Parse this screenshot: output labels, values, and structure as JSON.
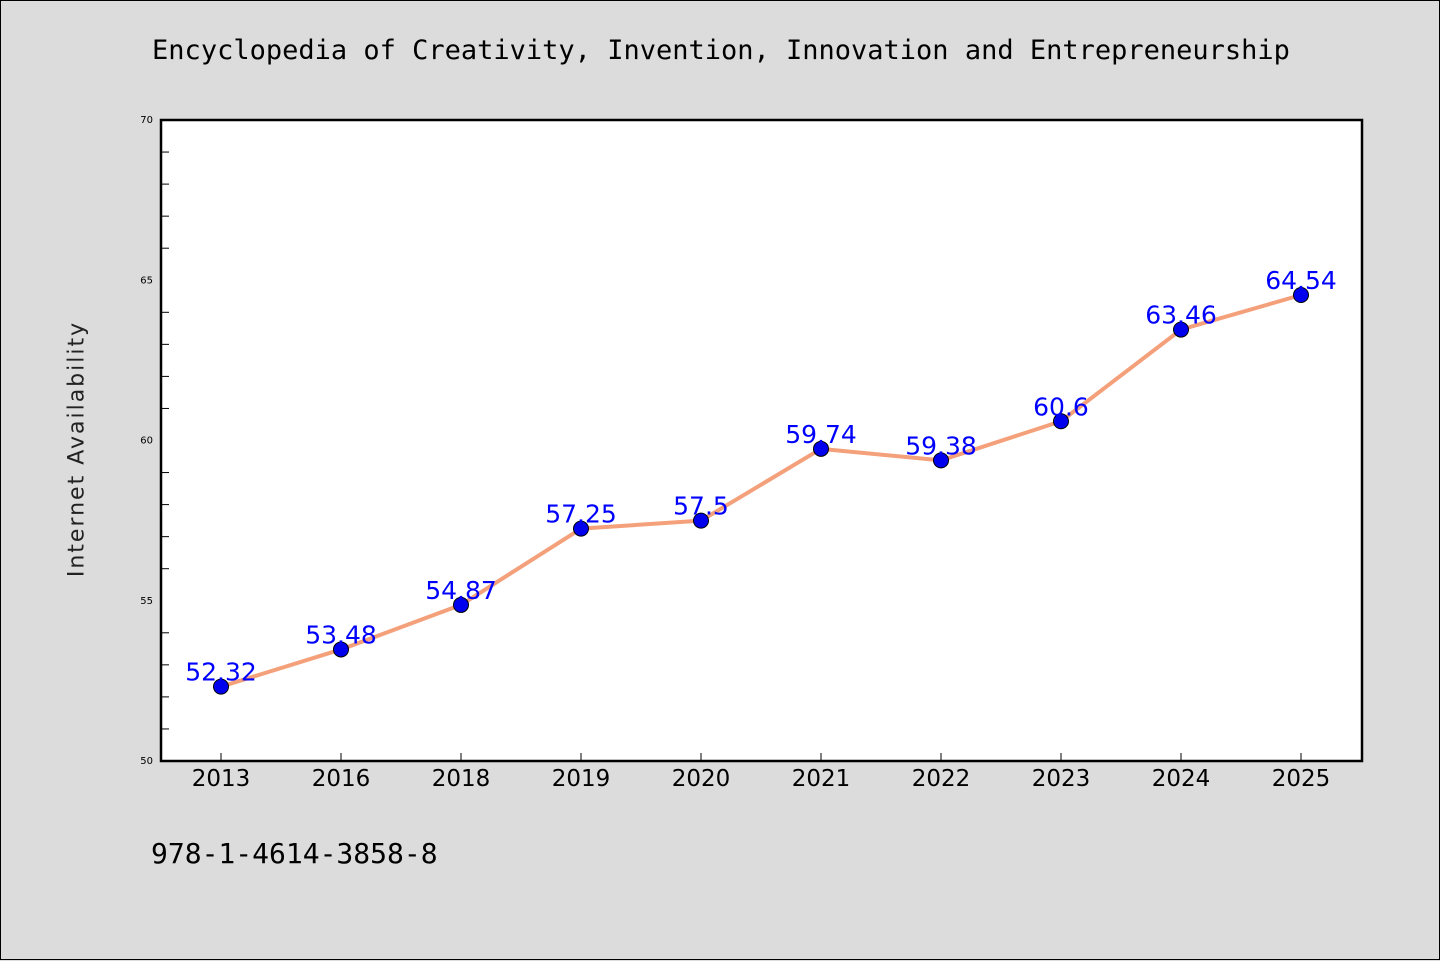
{
  "chart_data": {
    "type": "line",
    "title": "Encyclopedia of Creativity, Invention, Innovation and Entrepreneurship",
    "xlabel": "",
    "ylabel": "Internet Availability",
    "categories": [
      "2013",
      "2016",
      "2018",
      "2019",
      "2020",
      "2021",
      "2022",
      "2023",
      "2024",
      "2025"
    ],
    "series": [
      {
        "values": [
          52.32,
          53.48,
          54.87,
          57.25,
          57.5,
          59.74,
          59.38,
          60.6,
          63.46,
          64.54
        ],
        "line_color": "#f4a07a",
        "marker_color": "#0000ee",
        "label_color": "#0000ff"
      }
    ],
    "data_labels": [
      "52.32",
      "53.48",
      "54.87",
      "57.25",
      "57.5",
      "59.74",
      "59.38",
      "60.6",
      "63.46",
      "64.54"
    ],
    "ylim": [
      50,
      70
    ],
    "yticks": [
      "50",
      "55",
      "60",
      "65",
      "70"
    ],
    "grid": false,
    "legend": "none"
  },
  "footnote": "978-1-4614-3858-8",
  "colors": {
    "background": "#dcdcdc",
    "plot_background": "#ffffff"
  }
}
